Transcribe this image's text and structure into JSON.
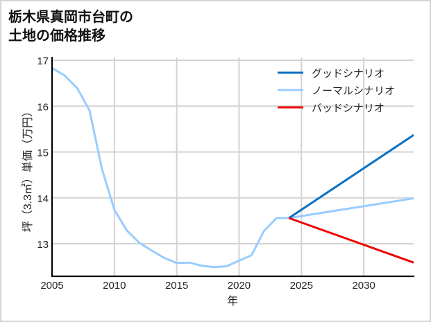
{
  "title_line1": "栃木県真岡市台町の",
  "title_line2": "土地の価格推移",
  "chart_data": {
    "type": "line",
    "title": "栃木県真岡市台町の土地の価格推移",
    "xlabel": "年",
    "ylabel": "坪（3.3㎡）単価（万円）",
    "xlim": [
      2005,
      2034
    ],
    "ylim": [
      12.3,
      17.05
    ],
    "xticks": [
      2005,
      2010,
      2015,
      2020,
      2025,
      2030
    ],
    "yticks": [
      13,
      14,
      15,
      16,
      17
    ],
    "grid": true,
    "legend_position": "upper right",
    "series": [
      {
        "name": "グッドシナリオ",
        "color": "#0a6fc2",
        "x": [
          2024,
          2034
        ],
        "values": [
          13.56,
          15.37
        ]
      },
      {
        "name": "ノーマルシナリオ",
        "color": "#99ccff",
        "x": [
          2005,
          2006,
          2007,
          2008,
          2009,
          2010,
          2011,
          2012,
          2013,
          2014,
          2015,
          2016,
          2017,
          2018,
          2019,
          2020,
          2021,
          2022,
          2023,
          2024,
          2034
        ],
        "values": [
          16.83,
          16.67,
          16.4,
          15.91,
          14.63,
          13.74,
          13.29,
          13.02,
          12.85,
          12.69,
          12.58,
          12.59,
          12.52,
          12.49,
          12.51,
          12.63,
          12.75,
          13.28,
          13.56,
          13.56,
          13.99
        ]
      },
      {
        "name": "バッドシナリオ",
        "color": "#ee0000",
        "x": [
          2024,
          2034
        ],
        "values": [
          13.56,
          12.59
        ]
      }
    ]
  }
}
